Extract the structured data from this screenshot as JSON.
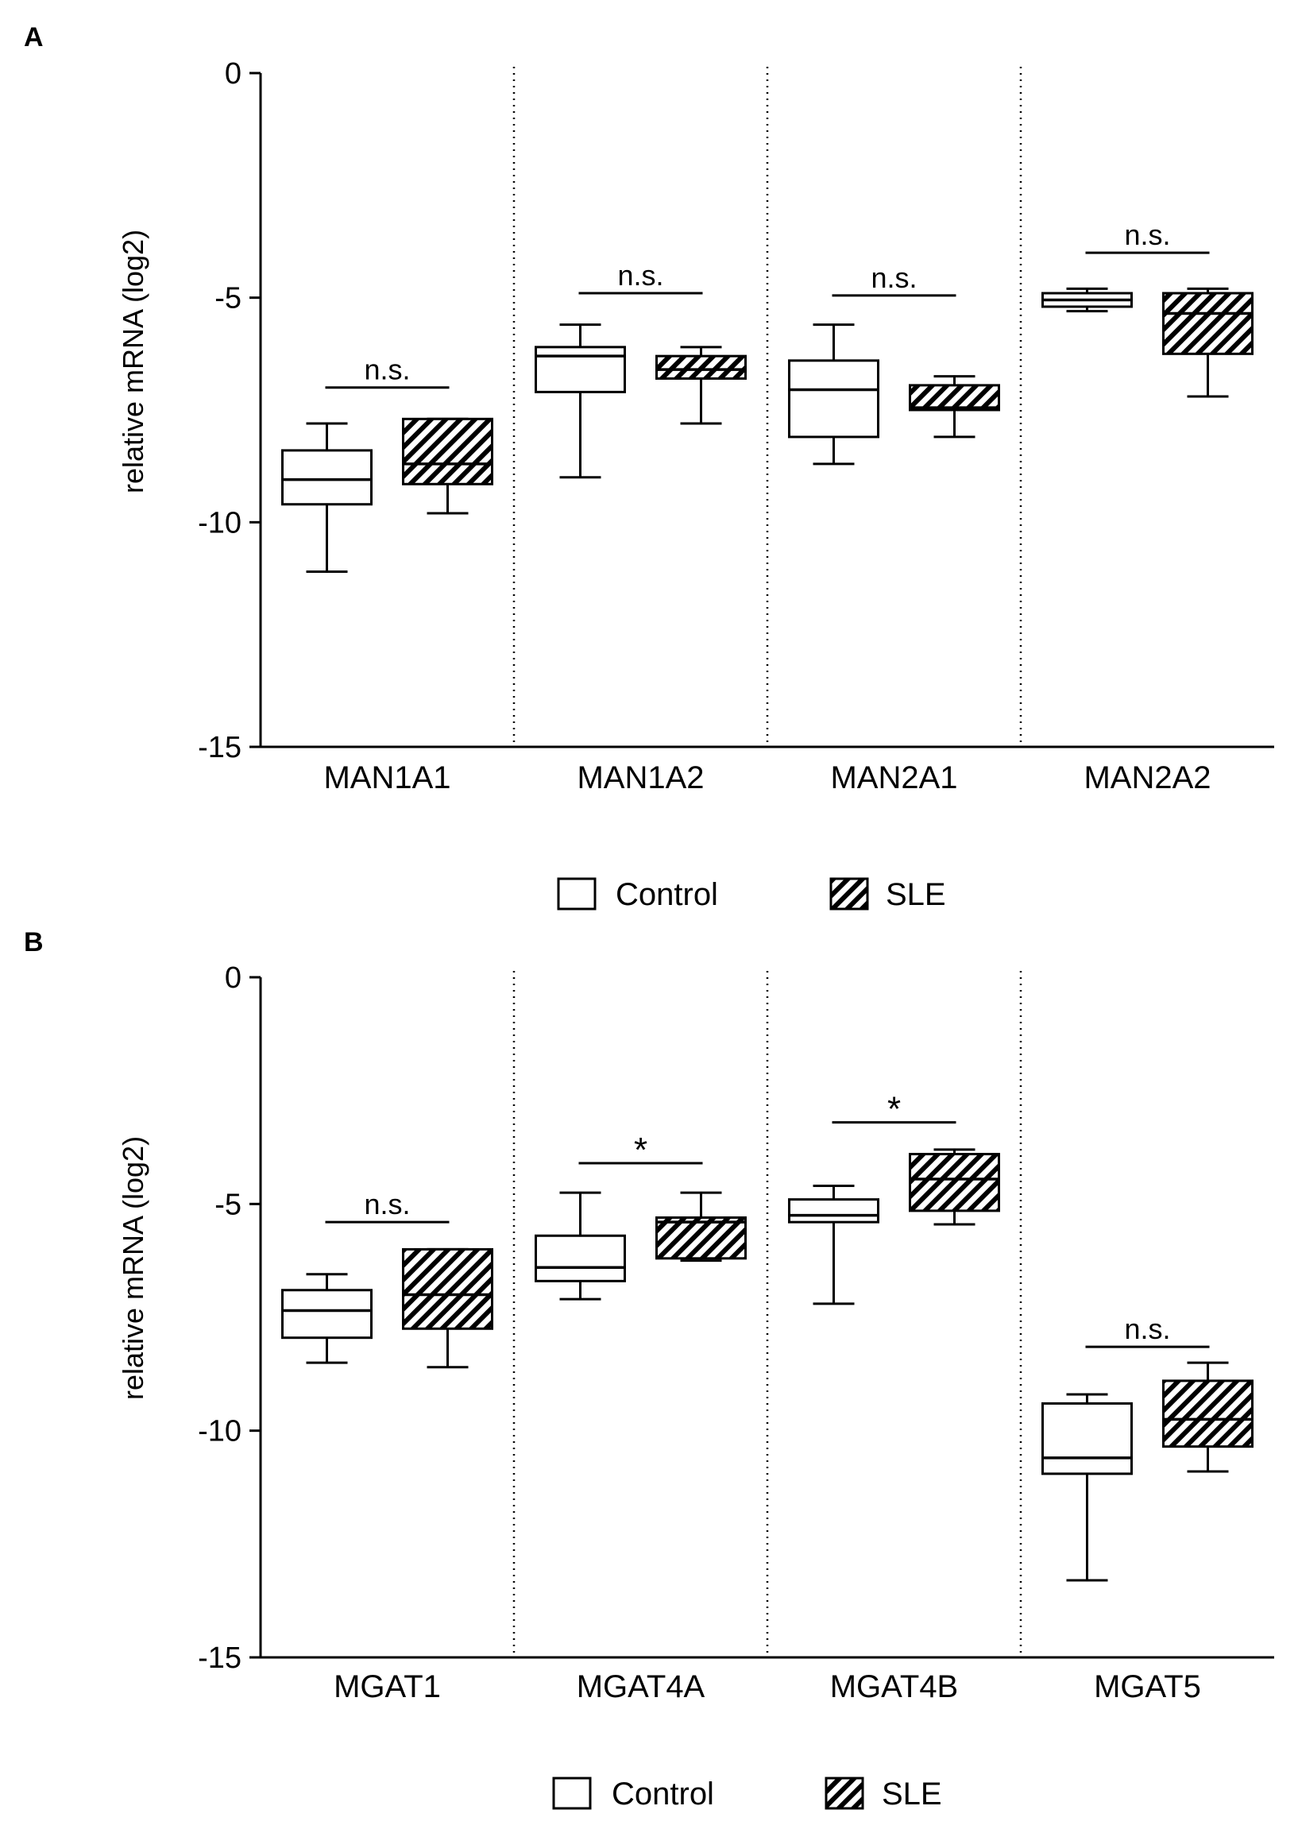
{
  "colors": {
    "ink": "#000000",
    "background": "#ffffff"
  },
  "legend": {
    "control_label": "Control",
    "sle_label": "SLE"
  },
  "chart_data": [
    {
      "type": "box",
      "panel_label": "A",
      "ylabel": "relative mRNA (log2)",
      "ylim": [
        -15,
        0
      ],
      "yticks": [
        0,
        -5,
        -10,
        -15
      ],
      "categories": [
        "MAN1A1",
        "MAN1A2",
        "MAN2A1",
        "MAN2A2"
      ],
      "series": [
        {
          "name": "Control",
          "pattern": "open",
          "boxes": [
            {
              "min": -11.1,
              "q1": -9.6,
              "median": -9.05,
              "q3": -8.4,
              "max": -7.8
            },
            {
              "min": -9.0,
              "q1": -7.1,
              "median": -6.3,
              "q3": -6.1,
              "max": -5.6
            },
            {
              "min": -8.7,
              "q1": -8.1,
              "median": -7.05,
              "q3": -6.4,
              "max": -5.6
            },
            {
              "min": -5.3,
              "q1": -5.2,
              "median": -5.05,
              "q3": -4.9,
              "max": -4.8
            }
          ]
        },
        {
          "name": "SLE",
          "pattern": "hatched",
          "boxes": [
            {
              "min": -9.8,
              "q1": -9.15,
              "median": -8.7,
              "q3": -7.7,
              "max": -7.7
            },
            {
              "min": -7.8,
              "q1": -6.8,
              "median": -6.6,
              "q3": -6.3,
              "max": -6.1
            },
            {
              "min": -8.1,
              "q1": -7.5,
              "median": -7.45,
              "q3": -6.95,
              "max": -6.75
            },
            {
              "min": -7.2,
              "q1": -6.25,
              "median": -5.35,
              "q3": -4.9,
              "max": -4.8
            }
          ]
        }
      ],
      "significance": [
        {
          "label": "n.s.",
          "y": -7.0
        },
        {
          "label": "n.s.",
          "y": -4.9
        },
        {
          "label": "n.s.",
          "y": -4.95
        },
        {
          "label": "n.s.",
          "y": -4.0
        }
      ]
    },
    {
      "type": "box",
      "panel_label": "B",
      "ylabel": "relative mRNA (log2)",
      "ylim": [
        -15,
        0
      ],
      "yticks": [
        0,
        -5,
        -10,
        -15
      ],
      "categories": [
        "MGAT1",
        "MGAT4A",
        "MGAT4B",
        "MGAT5"
      ],
      "series": [
        {
          "name": "Control",
          "pattern": "open",
          "boxes": [
            {
              "min": -8.5,
              "q1": -7.95,
              "median": -7.35,
              "q3": -6.9,
              "max": -6.55
            },
            {
              "min": -7.1,
              "q1": -6.7,
              "median": -6.4,
              "q3": -5.7,
              "max": -4.75
            },
            {
              "min": -7.2,
              "q1": -5.4,
              "median": -5.25,
              "q3": -4.9,
              "max": -4.6
            },
            {
              "min": -13.3,
              "q1": -10.95,
              "median": -10.6,
              "q3": -9.4,
              "max": -9.2
            }
          ]
        },
        {
          "name": "SLE",
          "pattern": "hatched",
          "boxes": [
            {
              "min": -8.6,
              "q1": -7.75,
              "median": -7.0,
              "q3": -6.0,
              "max": -6.0
            },
            {
              "min": -6.25,
              "q1": -6.2,
              "median": -5.4,
              "q3": -5.3,
              "max": -4.75
            },
            {
              "min": -5.45,
              "q1": -5.15,
              "median": -4.45,
              "q3": -3.9,
              "max": -3.8
            },
            {
              "min": -10.9,
              "q1": -10.35,
              "median": -9.75,
              "q3": -8.9,
              "max": -8.5
            }
          ]
        }
      ],
      "significance": [
        {
          "label": "n.s.",
          "y": -5.4
        },
        {
          "label": "*",
          "y": -4.1
        },
        {
          "label": "*",
          "y": -3.2
        },
        {
          "label": "n.s.",
          "y": -8.15
        }
      ]
    }
  ]
}
